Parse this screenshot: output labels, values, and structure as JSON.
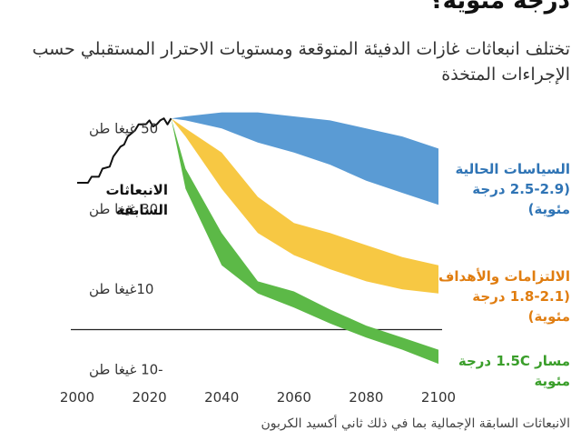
{
  "header": {
    "title": "درجة مئوية؟",
    "subtitle": "تختلف انبعاثات غازات الدفيئة المتوقعة ومستويات الاحترار المستقبلي حسب الإجراءات المتخذة",
    "footer": "الانبعاثات السابقة الإجمالية بما في ذلك ثاني أكسيد الكربون"
  },
  "chart_data": {
    "type": "area",
    "xlim": [
      2000,
      2100
    ],
    "ylim": [
      -13,
      53
    ],
    "x_ticks": [
      {
        "value": 2000,
        "label": "2000"
      },
      {
        "value": 2020,
        "label": "2020"
      },
      {
        "value": 2040,
        "label": "2040"
      },
      {
        "value": 2060,
        "label": "2060"
      },
      {
        "value": 2080,
        "label": "2080"
      },
      {
        "value": 2100,
        "label": "2100"
      }
    ],
    "y_ticks": [
      {
        "value": 50,
        "label": "50 غيغا طن"
      },
      {
        "value": 30,
        "label": "30 غيغا طن"
      },
      {
        "value": 10,
        "label": "10غيغا طن"
      },
      {
        "value": -10,
        "label": "-10 غيغا طن"
      }
    ],
    "zero_line": 0,
    "historical": {
      "label_lines": [
        "الانبعاثات",
        "السابقة"
      ],
      "color": "#111111",
      "points": [
        [
          2000,
          36.5
        ],
        [
          2003,
          36.5
        ],
        [
          2004,
          38
        ],
        [
          2006,
          38
        ],
        [
          2007,
          40
        ],
        [
          2009,
          40.5
        ],
        [
          2010,
          43
        ],
        [
          2012,
          45.5
        ],
        [
          2013,
          46
        ],
        [
          2014,
          48
        ],
        [
          2016,
          49.5
        ],
        [
          2017,
          51
        ],
        [
          2019,
          51
        ],
        [
          2020,
          52
        ],
        [
          2021,
          50.5
        ],
        [
          2022,
          51
        ],
        [
          2023,
          52
        ],
        [
          2024,
          52.5
        ],
        [
          2025,
          51
        ],
        [
          2026,
          52.5
        ]
      ]
    },
    "series": [
      {
        "name": "السياسات الحالية",
        "label_lines": [
          "السياسات الحالية",
          "(2.5-2.9 درجة",
          "مئوية)"
        ],
        "color": "#5a9bd4",
        "label_color": "#2f74b5",
        "x": [
          2026,
          2030,
          2040,
          2050,
          2060,
          2070,
          2080,
          2090,
          2100
        ],
        "upper": [
          52.5,
          53,
          54,
          54,
          53,
          52,
          50,
          48,
          45
        ],
        "lower": [
          52.5,
          52,
          50,
          46.5,
          44,
          41,
          37,
          34,
          31
        ]
      },
      {
        "name": "الالتزامات والأهداف",
        "label_lines": [
          "الالتزامات والأهداف",
          "(1.8-2.1 درجة",
          "مئوية)"
        ],
        "color": "#f7c843",
        "label_color": "#e07d10",
        "x": [
          2026,
          2030,
          2040,
          2050,
          2060,
          2070,
          2080,
          2090,
          2100
        ],
        "upper": [
          52.5,
          50,
          44,
          33,
          26.5,
          24,
          21,
          18,
          16
        ],
        "lower": [
          52.5,
          48,
          35,
          24,
          18.5,
          15,
          12,
          10,
          9
        ]
      },
      {
        "name": "مسار 1.5C",
        "label_lines": [
          "مسار 1.5C درجة",
          "مئوية"
        ],
        "color": "#5cb947",
        "label_color": "#3a9e2a",
        "x": [
          2026,
          2030,
          2040,
          2050,
          2060,
          2070,
          2080,
          2090,
          2100
        ],
        "upper": [
          52.5,
          40,
          24,
          12,
          9.5,
          5,
          1,
          -2,
          -5
        ],
        "lower": [
          52.5,
          35,
          16,
          9,
          5.5,
          1.5,
          -2,
          -5,
          -8.5
        ]
      }
    ]
  }
}
